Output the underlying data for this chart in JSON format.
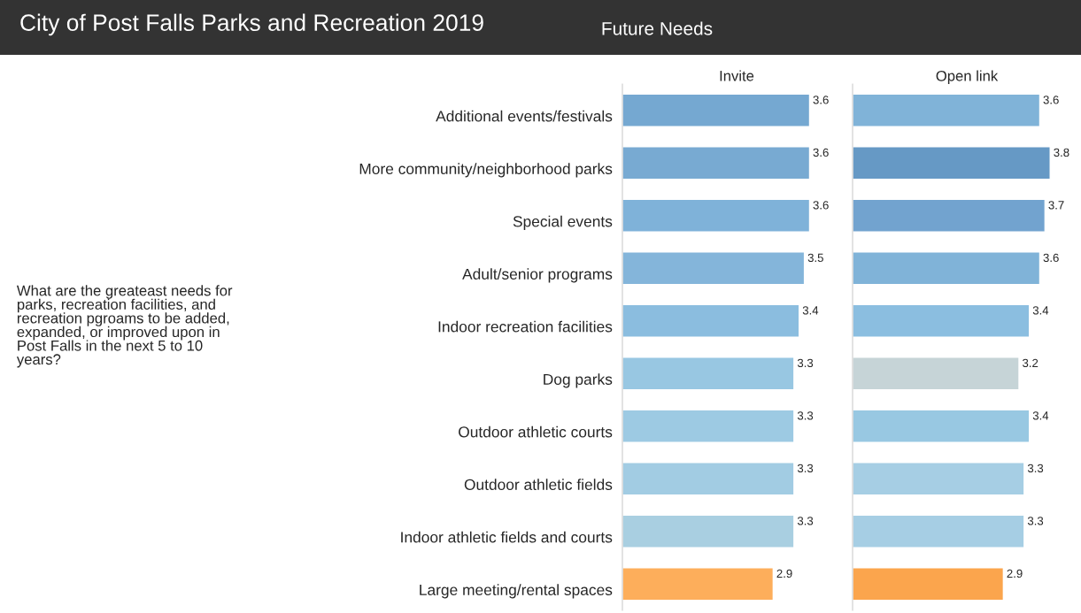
{
  "chart_data": [
    {
      "type": "other",
      "title": "City of Post Falls Parks and Recreation 2019",
      "subtitle": "Future Needs",
      "annotations": [
        "What are the greateast needs for parks, recreation facilities, and recreation pgroams to be added, expanded, or improved upon in Post Falls in the next 5 to 10 years?"
      ]
    },
    {
      "type": "bar",
      "orientation": "horizontal",
      "title": "Invite",
      "categories": [
        "Additional events/festivals",
        "More community/neighborhood parks",
        "Special events",
        "Adult/senior programs",
        "Indoor recreation facilities",
        "Dog parks",
        "Outdoor athletic courts",
        "Outdoor athletic fields",
        "Indoor athletic fields and courts",
        "Large meeting/rental spaces"
      ],
      "values": [
        3.6,
        3.6,
        3.6,
        3.5,
        3.4,
        3.3,
        3.3,
        3.3,
        3.3,
        2.9
      ],
      "colors": [
        "#75a8d1",
        "#78aad2",
        "#7fb2d9",
        "#84b5da",
        "#8bbddf",
        "#98c7e2",
        "#9dcae3",
        "#a2cce3",
        "#a9cfe1",
        "#fdae5b"
      ],
      "data_labels": true,
      "tick_labels": "y"
    },
    {
      "type": "bar",
      "orientation": "horizontal",
      "title": "Open link",
      "values": [
        3.6,
        3.8,
        3.7,
        3.6,
        3.4,
        3.2,
        3.4,
        3.3,
        3.3,
        2.9
      ],
      "colors": [
        "#80b3d8",
        "#6699c5",
        "#72a3cf",
        "#80b3d8",
        "#8bbee0",
        "#c6d4d7",
        "#98c8e2",
        "#a6cee4",
        "#a6cee4",
        "#fba54d"
      ],
      "data_labels": true,
      "tick_labels": false
    }
  ]
}
